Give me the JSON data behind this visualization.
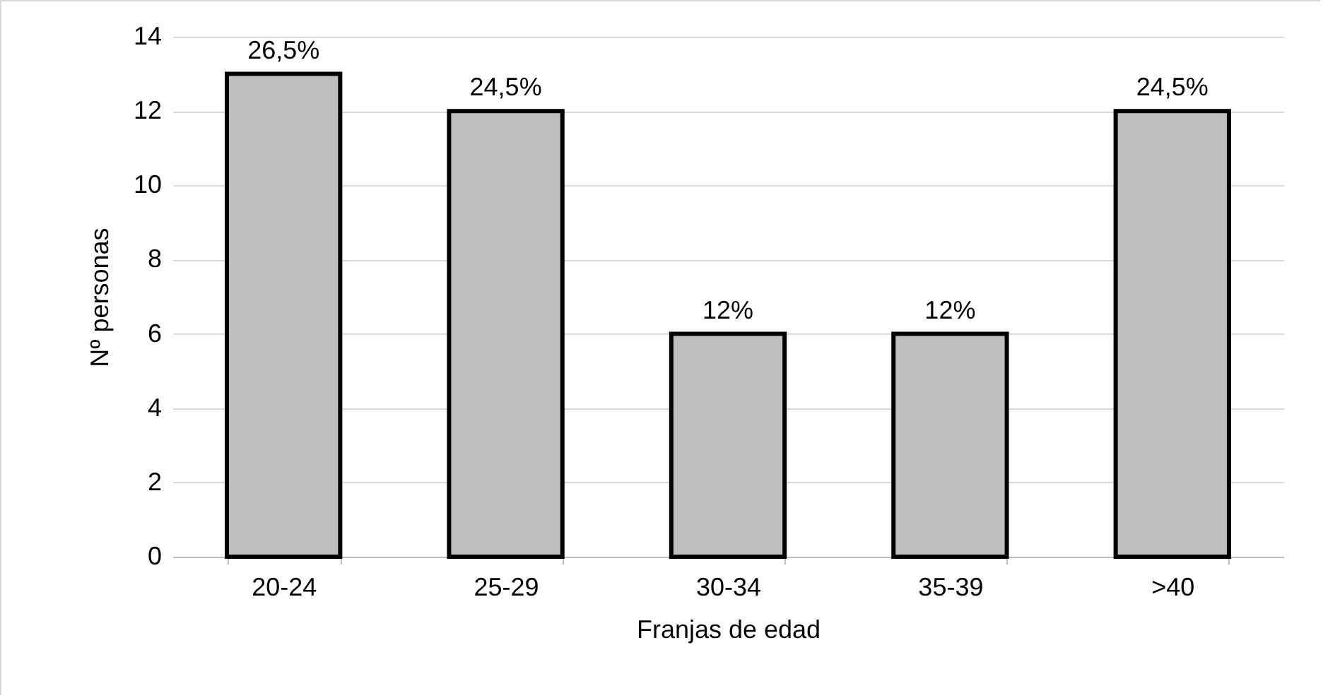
{
  "chart_data": {
    "type": "bar",
    "xlabel": "Franjas de edad",
    "ylabel": "Nº personas",
    "categories": [
      "20-24",
      "25-29",
      "30-34",
      "35-39",
      ">40"
    ],
    "values": [
      13,
      12,
      6,
      6,
      12
    ],
    "annotations": [
      {
        "text": "26,5%",
        "x": "20-24",
        "y": 13
      },
      {
        "text": "24,5%",
        "x": "25-29",
        "y": 12
      },
      {
        "text": "12%",
        "x": "30-34",
        "y": 6
      },
      {
        "text": "12%",
        "x": "35-39",
        "y": 6
      },
      {
        "text": "24,5%",
        "x": ">40",
        "y": 12
      }
    ],
    "color": "#bfbfbf",
    "ylim": [
      0,
      14
    ],
    "yticks": [
      0,
      2,
      4,
      6,
      8,
      10,
      12,
      14
    ],
    "grid": "y"
  }
}
